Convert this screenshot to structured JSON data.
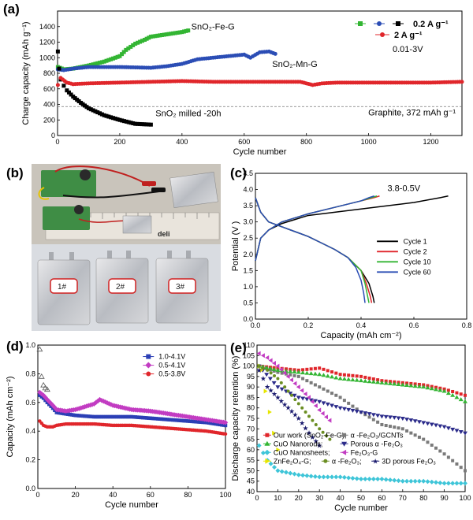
{
  "panels": {
    "a": "(a)",
    "b": "(b)",
    "c": "(c)",
    "d": "(d)",
    "e": "(e)"
  },
  "photo": {
    "ruler_brand": "deli",
    "cell_labels": [
      "1#",
      "2#",
      "3#"
    ]
  },
  "chart_data": [
    {
      "id": "a",
      "type": "scatter",
      "xlabel": "Cycle number",
      "ylabel": "Charge capacity (mAh g⁻¹)",
      "xlim": [
        0,
        1300
      ],
      "ylim": [
        0,
        1600
      ],
      "xticks": [
        0,
        200,
        400,
        600,
        800,
        1000,
        1200
      ],
      "yticks": [
        0,
        200,
        400,
        600,
        800,
        1000,
        1200,
        1400
      ],
      "legend": {
        "row1_label": "0.2 A g⁻¹",
        "row2_label": "2 A g⁻¹",
        "row3_label": "0.01-3V",
        "row1_colors": [
          "#33b533",
          "#2b4db5",
          "#000000"
        ],
        "row2_color": "#e0262b"
      },
      "annotations": {
        "fe": "SnO₂-Fe-G",
        "mn": "SnO₂-Mn-G",
        "milled": "SnO₂ milled -20h",
        "graphite": "Graphite, 372 mAh g⁻¹"
      },
      "reference_line": 372,
      "series": [
        {
          "name": "SnO₂-Fe-G",
          "color": "#33b533",
          "marker": "square",
          "x": [
            1,
            20,
            50,
            100,
            150,
            200,
            220,
            250,
            280,
            300,
            350,
            400,
            420
          ],
          "y": [
            880,
            850,
            860,
            900,
            950,
            1020,
            1100,
            1180,
            1230,
            1270,
            1300,
            1330,
            1350
          ]
        },
        {
          "name": "SnO₂-Mn-G",
          "color": "#2b4db5",
          "marker": "circle",
          "x": [
            1,
            20,
            50,
            100,
            200,
            300,
            350,
            400,
            450,
            500,
            550,
            600,
            620,
            650,
            680,
            700
          ],
          "y": [
            850,
            840,
            860,
            880,
            880,
            870,
            890,
            920,
            980,
            1000,
            1020,
            1040,
            1000,
            1070,
            1080,
            1050
          ]
        },
        {
          "name": "SnO₂ milled -20h",
          "color": "#000000",
          "marker": "square",
          "x": [
            1,
            5,
            10,
            20,
            30,
            50,
            75,
            100,
            150,
            200,
            250,
            300
          ],
          "y": [
            1080,
            860,
            720,
            640,
            580,
            500,
            420,
            350,
            260,
            200,
            150,
            140
          ]
        },
        {
          "name": "2 A g⁻¹",
          "color": "#e0262b",
          "marker": "circle",
          "x": [
            1,
            10,
            30,
            50,
            100,
            200,
            300,
            400,
            500,
            600,
            700,
            780,
            820,
            850,
            900,
            1000,
            1100,
            1200,
            1300
          ],
          "y": [
            650,
            740,
            680,
            660,
            670,
            680,
            690,
            700,
            690,
            690,
            690,
            690,
            650,
            670,
            680,
            680,
            680,
            680,
            690
          ]
        }
      ]
    },
    {
      "id": "c",
      "type": "line",
      "xlabel": "Capacity (mAh cm⁻²)",
      "ylabel": "Potential (V )",
      "xlim": [
        0,
        0.8
      ],
      "ylim": [
        0,
        4.5
      ],
      "xticks": [
        0.0,
        0.2,
        0.4,
        0.6,
        0.8
      ],
      "yticks": [
        0.0,
        0.5,
        1.0,
        1.5,
        2.0,
        2.5,
        3.0,
        3.5,
        4.0,
        4.5
      ],
      "annotation": "3.8-0.5V",
      "series": [
        {
          "name": "Cycle 1",
          "color": "#000000",
          "charge_x": [
            0.0,
            0.02,
            0.05,
            0.1,
            0.2,
            0.3,
            0.4,
            0.5,
            0.6,
            0.7,
            0.73
          ],
          "charge_y": [
            1.8,
            2.5,
            2.75,
            2.95,
            3.2,
            3.3,
            3.4,
            3.5,
            3.6,
            3.75,
            3.8
          ],
          "dis_x": [
            0.0,
            0.02,
            0.05,
            0.1,
            0.15,
            0.2,
            0.25,
            0.3,
            0.35,
            0.4,
            0.43,
            0.445,
            0.45
          ],
          "dis_y": [
            3.75,
            3.3,
            3.0,
            2.85,
            2.7,
            2.55,
            2.35,
            2.15,
            1.9,
            1.5,
            1.1,
            0.7,
            0.5
          ]
        },
        {
          "name": "Cycle 2",
          "color": "#e0262b",
          "charge_x": [
            0.0,
            0.02,
            0.05,
            0.1,
            0.2,
            0.3,
            0.4,
            0.45,
            0.47
          ],
          "charge_y": [
            1.8,
            2.5,
            2.75,
            3.0,
            3.25,
            3.45,
            3.65,
            3.75,
            3.8
          ],
          "dis_x": [
            0.0,
            0.02,
            0.05,
            0.1,
            0.15,
            0.2,
            0.25,
            0.3,
            0.35,
            0.4,
            0.42,
            0.435,
            0.44
          ],
          "dis_y": [
            3.75,
            3.3,
            3.0,
            2.85,
            2.7,
            2.55,
            2.35,
            2.15,
            1.9,
            1.5,
            1.1,
            0.7,
            0.5
          ]
        },
        {
          "name": "Cycle 10",
          "color": "#33b533",
          "charge_x": [
            0.0,
            0.02,
            0.05,
            0.1,
            0.2,
            0.3,
            0.4,
            0.44,
            0.46
          ],
          "charge_y": [
            1.8,
            2.5,
            2.75,
            3.0,
            3.25,
            3.45,
            3.65,
            3.75,
            3.8
          ],
          "dis_x": [
            0.0,
            0.02,
            0.05,
            0.1,
            0.15,
            0.2,
            0.25,
            0.3,
            0.35,
            0.4,
            0.415,
            0.425,
            0.43
          ],
          "dis_y": [
            3.75,
            3.3,
            3.0,
            2.85,
            2.7,
            2.55,
            2.35,
            2.15,
            1.9,
            1.5,
            1.1,
            0.7,
            0.5
          ]
        },
        {
          "name": "Cycle 60",
          "color": "#2b4db5",
          "charge_x": [
            0.0,
            0.02,
            0.05,
            0.1,
            0.2,
            0.3,
            0.4,
            0.43,
            0.45
          ],
          "charge_y": [
            1.8,
            2.5,
            2.75,
            3.0,
            3.25,
            3.45,
            3.65,
            3.75,
            3.8
          ],
          "dis_x": [
            0.0,
            0.02,
            0.05,
            0.1,
            0.15,
            0.2,
            0.25,
            0.3,
            0.35,
            0.38,
            0.4,
            0.41,
            0.415
          ],
          "dis_y": [
            3.75,
            3.3,
            3.0,
            2.85,
            2.7,
            2.55,
            2.35,
            2.15,
            1.9,
            1.6,
            1.2,
            0.8,
            0.5
          ]
        }
      ]
    },
    {
      "id": "d",
      "type": "scatter",
      "xlabel": "Cycle number",
      "ylabel": "Capacity (mAh cm⁻²)",
      "xlim": [
        0,
        100
      ],
      "ylim": [
        0.0,
        1.0
      ],
      "xticks": [
        0,
        20,
        40,
        60,
        80,
        100
      ],
      "yticks": [
        0.0,
        0.2,
        0.4,
        0.6,
        0.8,
        1.0
      ],
      "series": [
        {
          "name": "1.0-4.1V",
          "color": "#2b3fb5",
          "marker": "square",
          "x": [
            1,
            3,
            5,
            8,
            10,
            15,
            20,
            30,
            40,
            50,
            60,
            70,
            80,
            90,
            100
          ],
          "y": [
            0.65,
            0.63,
            0.6,
            0.56,
            0.53,
            0.52,
            0.51,
            0.5,
            0.5,
            0.5,
            0.49,
            0.48,
            0.47,
            0.46,
            0.44
          ]
        },
        {
          "name": "0.5-4.1V",
          "color": "#c23cc2",
          "marker": "diamond",
          "x": [
            1,
            3,
            5,
            8,
            10,
            15,
            20,
            30,
            33,
            40,
            50,
            60,
            70,
            80,
            90,
            100
          ],
          "y": [
            0.67,
            0.65,
            0.62,
            0.58,
            0.55,
            0.54,
            0.55,
            0.59,
            0.62,
            0.58,
            0.55,
            0.54,
            0.52,
            0.5,
            0.48,
            0.46
          ]
        },
        {
          "name": "0.5-3.8V",
          "color": "#e0262b",
          "marker": "circle",
          "x": [
            1,
            3,
            5,
            8,
            10,
            15,
            20,
            30,
            40,
            50,
            60,
            70,
            80,
            90,
            100
          ],
          "y": [
            0.47,
            0.44,
            0.43,
            0.43,
            0.44,
            0.45,
            0.45,
            0.45,
            0.44,
            0.44,
            0.43,
            0.42,
            0.41,
            0.4,
            0.38
          ]
        },
        {
          "name": "",
          "color": "#555555",
          "marker": "open-triangle",
          "x": [
            1,
            2,
            3,
            4,
            5
          ],
          "y": [
            0.97,
            0.78,
            0.72,
            0.7,
            0.69
          ]
        }
      ]
    },
    {
      "id": "e",
      "type": "scatter",
      "xlabel": "Cycle number",
      "ylabel": "Discharge capacity retention (%)",
      "xlim": [
        0,
        100
      ],
      "ylim": [
        40,
        110
      ],
      "xticks": [
        0,
        10,
        20,
        30,
        40,
        50,
        60,
        70,
        80,
        90,
        100
      ],
      "yticks": [
        40,
        45,
        50,
        55,
        60,
        65,
        70,
        75,
        80,
        85,
        90,
        95,
        100,
        105,
        110
      ],
      "legend_rows": [
        [
          "Our work (SnO₂-Fe-G);",
          "α -Fe₂O₃/GCNTs"
        ],
        [
          "CuO Nanorods;",
          "Porous α -Fe₂O₃"
        ],
        [
          "CuO Nanosheets;",
          "Fe₂O₃-G"
        ],
        [
          "ZnFe₂O₄-G;",
          "α -Fe₂O₃;",
          "3D porous Fe₂O₃"
        ]
      ],
      "series": [
        {
          "name": "Our work (SnO₂-Fe-G)",
          "color": "#e0262b",
          "marker": "square",
          "x": [
            1,
            10,
            20,
            30,
            40,
            50,
            60,
            70,
            80,
            90,
            100
          ],
          "y": [
            100,
            99,
            98,
            99,
            96,
            95,
            93,
            92,
            91,
            89,
            86
          ]
        },
        {
          "name": "α -Fe₂O₃/GCNTs",
          "color": "#7a7a7a",
          "marker": "square",
          "x": [
            1,
            10,
            20,
            30,
            40,
            50,
            60,
            70,
            80,
            90,
            100
          ],
          "y": [
            100,
            97,
            95,
            90,
            85,
            78,
            72,
            70,
            65,
            58,
            50
          ]
        },
        {
          "name": "CuO Nanorods",
          "color": "#33b533",
          "marker": "triangle",
          "x": [
            1,
            10,
            20,
            30,
            40,
            50,
            60,
            70,
            80,
            90,
            100
          ],
          "y": [
            100,
            98,
            97,
            96,
            94,
            93,
            92,
            91,
            90,
            88,
            83
          ]
        },
        {
          "name": "Porous α -Fe₂O₃",
          "color": "#2b2b8a",
          "marker": "triangle-down",
          "x": [
            1,
            10,
            20,
            30,
            40,
            50,
            60,
            70,
            80,
            90,
            100
          ],
          "y": [
            100,
            90,
            85,
            83,
            80,
            78,
            76,
            75,
            73,
            71,
            68
          ]
        },
        {
          "name": "CuO Nanosheets",
          "color": "#3ec5d8",
          "marker": "diamond",
          "x": [
            1,
            5,
            10,
            20,
            30,
            40,
            50,
            60,
            70,
            80,
            90,
            100
          ],
          "y": [
            62,
            55,
            50,
            48,
            47,
            47,
            46,
            46,
            45,
            45,
            44,
            44
          ]
        },
        {
          "name": "Fe₂O₃-G",
          "color": "#c23cc2",
          "marker": "triangle-left",
          "x": [
            1,
            5,
            10,
            15,
            20,
            25,
            30,
            35
          ],
          "y": [
            106,
            104,
            100,
            95,
            90,
            85,
            79,
            74
          ]
        },
        {
          "name": "ZnFe₂O₄-G",
          "color": "#e6e600",
          "marker": "triangle-right",
          "x": [
            1,
            2,
            4,
            6,
            8,
            10
          ],
          "y": [
            100,
            98,
            88,
            78,
            68,
            60
          ]
        },
        {
          "name": "α -Fe₂O₃",
          "color": "#6b8e23",
          "marker": "circle",
          "x": [
            1,
            5,
            10,
            15,
            20,
            25,
            30,
            35
          ],
          "y": [
            100,
            98,
            94,
            88,
            82,
            76,
            70,
            65
          ]
        },
        {
          "name": "3D porous Fe₂O₃",
          "color": "#1a1a6e",
          "marker": "star",
          "x": [
            1,
            5,
            10,
            15,
            20,
            25,
            30
          ],
          "y": [
            98,
            90,
            85,
            80,
            75,
            68,
            62
          ]
        }
      ]
    }
  ]
}
